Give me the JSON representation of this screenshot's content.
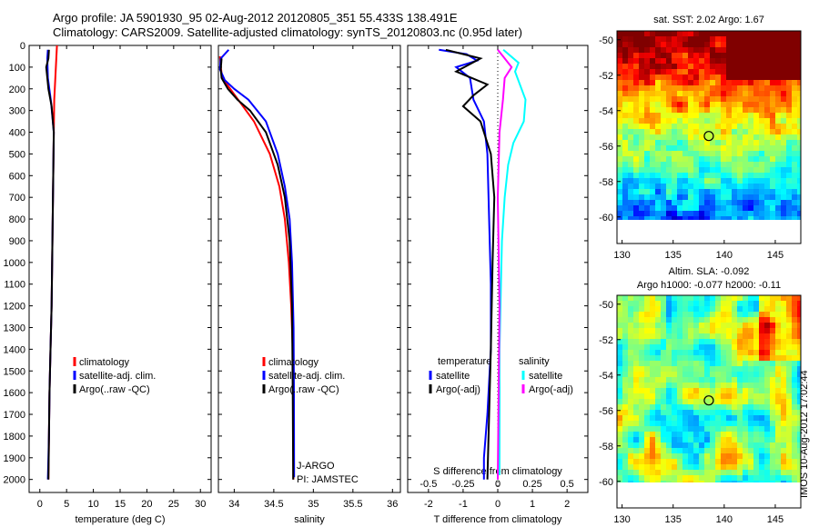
{
  "header": {
    "line1": "Argo profile: JA 5901930_95 02-Aug-2012 20120805_351 55.433S 138.491E",
    "line2": "Climatology: CARS2009. Satellite-adjusted climatology: synTS_20120803.nc (0.95d later)"
  },
  "colors": {
    "climatology": "#ff0000",
    "satellite": "#0000ff",
    "argo": "#000000",
    "salinity_satellite": "#00ffff",
    "salinity_argo": "#ff00ff"
  },
  "chart_data": [
    {
      "type": "line",
      "id": "temperature",
      "xlabel": "temperature (deg C)",
      "ylabel": "",
      "xlim": [
        -2,
        32
      ],
      "ylim": [
        2060,
        0
      ],
      "xticks": [
        "0",
        "5",
        "10",
        "15",
        "20",
        "25",
        "30"
      ],
      "yticks": [
        "0",
        "100",
        "200",
        "300",
        "400",
        "500",
        "600",
        "700",
        "800",
        "900",
        "1000",
        "1100",
        "1200",
        "1300",
        "1400",
        "1500",
        "1600",
        "1700",
        "1800",
        "1900",
        "2000"
      ],
      "legend": [
        "climatology",
        "satellite-adj. clim.",
        "Argo(..raw -QC)"
      ],
      "series": [
        {
          "name": "climatology",
          "color": "#ff0000",
          "x": [
            3.2,
            3.1,
            2.9,
            2.7,
            2.6,
            2.5,
            2.4,
            2.3,
            2.2,
            2.0,
            1.8,
            1.7,
            1.6
          ],
          "y": [
            0,
            50,
            150,
            250,
            400,
            600,
            800,
            1000,
            1200,
            1400,
            1600,
            1800,
            2000
          ]
        },
        {
          "name": "satellite-adj. clim.",
          "color": "#0000ff",
          "x": [
            1.5,
            1.4,
            1.5,
            2.1,
            2.6,
            2.5,
            2.4,
            2.3,
            2.2,
            2.0,
            1.8,
            1.7,
            1.5
          ],
          "y": [
            20,
            60,
            150,
            260,
            400,
            600,
            800,
            1000,
            1200,
            1400,
            1600,
            1800,
            2000
          ]
        },
        {
          "name": "Argo(..raw -QC)",
          "color": "#000000",
          "x": [
            1.7,
            1.6,
            1.2,
            1.6,
            2.2,
            2.6,
            2.5,
            2.4,
            2.3,
            2.2,
            2.0,
            1.8,
            1.7,
            1.6
          ],
          "y": [
            20,
            60,
            100,
            200,
            280,
            400,
            600,
            800,
            1000,
            1200,
            1400,
            1600,
            1800,
            2000
          ]
        }
      ]
    },
    {
      "type": "line",
      "id": "salinity",
      "xlabel": "salinity",
      "ylabel": "",
      "xlim": [
        33.8,
        36.1
      ],
      "ylim": [
        2060,
        0
      ],
      "xticks": [
        "34",
        "34.5",
        "35",
        "35.5",
        "36"
      ],
      "legend": [
        "climatology",
        "satellite-adj. clim.",
        "Argo(..raw -QC)"
      ],
      "annotations": [
        "J-ARGO",
        "PI: JAMSTEC"
      ],
      "series": [
        {
          "name": "climatology",
          "color": "#ff0000",
          "x": [
            33.82,
            33.83,
            33.85,
            33.95,
            34.05,
            34.25,
            34.45,
            34.57,
            34.64,
            34.69,
            34.72,
            34.74,
            34.745,
            34.748
          ],
          "y": [
            50,
            100,
            150,
            200,
            250,
            350,
            500,
            650,
            800,
            1000,
            1200,
            1400,
            1700,
            2000
          ]
        },
        {
          "name": "satellite-adj. clim.",
          "color": "#0000ff",
          "x": [
            33.93,
            33.83,
            33.82,
            33.88,
            34.0,
            34.18,
            34.4,
            34.55,
            34.64,
            34.7,
            34.73,
            34.75,
            34.755,
            34.757
          ],
          "y": [
            20,
            60,
            110,
            160,
            200,
            250,
            350,
            500,
            650,
            800,
            1000,
            1300,
            1600,
            1990
          ]
        },
        {
          "name": "Argo(..raw -QC)",
          "color": "#000000",
          "x": [
            33.84,
            33.83,
            33.84,
            33.92,
            34.04,
            34.2,
            34.4,
            34.55,
            34.64,
            34.7,
            34.73,
            34.74,
            34.745
          ],
          "y": [
            60,
            110,
            150,
            200,
            250,
            300,
            400,
            550,
            700,
            900,
            1200,
            1600,
            2000
          ]
        }
      ]
    },
    {
      "type": "line",
      "id": "differences",
      "xlabel": "T difference from climatology",
      "xlabel_top": "S difference from climatology",
      "xlim": [
        -2.6,
        2.6
      ],
      "ylim": [
        2060,
        0
      ],
      "xticks": [
        "-2",
        "-1",
        "0",
        "1",
        "2"
      ],
      "xticks_s": [
        "-0.5",
        "-0.25",
        "0",
        "0.25",
        "0.5"
      ],
      "legend_temperature_title": "temperature",
      "legend_salinity_title": "salinity",
      "legend_temperature": [
        "satellite",
        "Argo(-adj)"
      ],
      "legend_salinity": [
        "satellite",
        "Argo(-adj)"
      ],
      "series": [
        {
          "name": "temperature satellite",
          "color": "#0000ff",
          "x": [
            -1.7,
            -0.9,
            -0.6,
            -1.2,
            -0.8,
            -0.7,
            -0.4,
            -0.3,
            -0.25,
            -0.2,
            -0.2,
            -0.3,
            -0.4,
            -0.4
          ],
          "y": [
            20,
            40,
            70,
            100,
            150,
            250,
            350,
            500,
            800,
            1100,
            1400,
            1700,
            1900,
            2000
          ]
        },
        {
          "name": "temperature Argo(-adj)",
          "color": "#000000",
          "x": [
            -1.5,
            -0.5,
            -1.2,
            -0.3,
            -0.7,
            -1.0,
            -0.5,
            -0.2,
            -0.1,
            -0.15,
            -0.2,
            -0.25,
            -0.3
          ],
          "y": [
            20,
            60,
            120,
            180,
            230,
            280,
            350,
            500,
            700,
            1000,
            1400,
            1700,
            2000
          ]
        },
        {
          "name": "salinity satellite",
          "color": "#00ffff",
          "x": [
            0.16,
            0.6,
            0.5,
            0.8,
            0.75,
            0.45,
            0.3,
            0.2,
            0.12,
            0.05,
            0.05
          ],
          "y": [
            20,
            80,
            120,
            250,
            350,
            450,
            550,
            700,
            900,
            1400,
            1980
          ]
        },
        {
          "name": "salinity Argo(-adj)",
          "color": "#ff00ff",
          "x": [
            0.0,
            0.15,
            0.4,
            0.2,
            0.15,
            0.05,
            0.0,
            0.05,
            0.0
          ],
          "y": [
            20,
            50,
            100,
            150,
            250,
            400,
            700,
            1200,
            2000
          ]
        }
      ]
    },
    {
      "type": "heatmap",
      "id": "sst_map",
      "title": "sat. SST: 2.02 Argo: 1.67",
      "xlim": [
        129.5,
        147.5
      ],
      "ylim": [
        -61.5,
        -49.5
      ],
      "xticks": [
        "130",
        "135",
        "140",
        "145"
      ],
      "yticks": [
        "-50",
        "-52",
        "-54",
        "-56",
        "-58",
        "-60"
      ],
      "marker": {
        "lon": 138.491,
        "lat": -55.433
      }
    },
    {
      "type": "heatmap",
      "id": "sla_map",
      "title_line1": "Altim. SLA: -0.092",
      "title_line2": "Argo h1000: -0.077 h2000: -0.11",
      "xlim": [
        129.5,
        147.5
      ],
      "ylim": [
        -61.5,
        -49.5
      ],
      "xticks": [
        "130",
        "135",
        "140",
        "145"
      ],
      "yticks": [
        "-50",
        "-52",
        "-54",
        "-56",
        "-58",
        "-60"
      ],
      "marker": {
        "lon": 138.491,
        "lat": -55.433
      }
    }
  ],
  "footer_stamp": "IMOS 10-Aug-2012 17:02:44"
}
